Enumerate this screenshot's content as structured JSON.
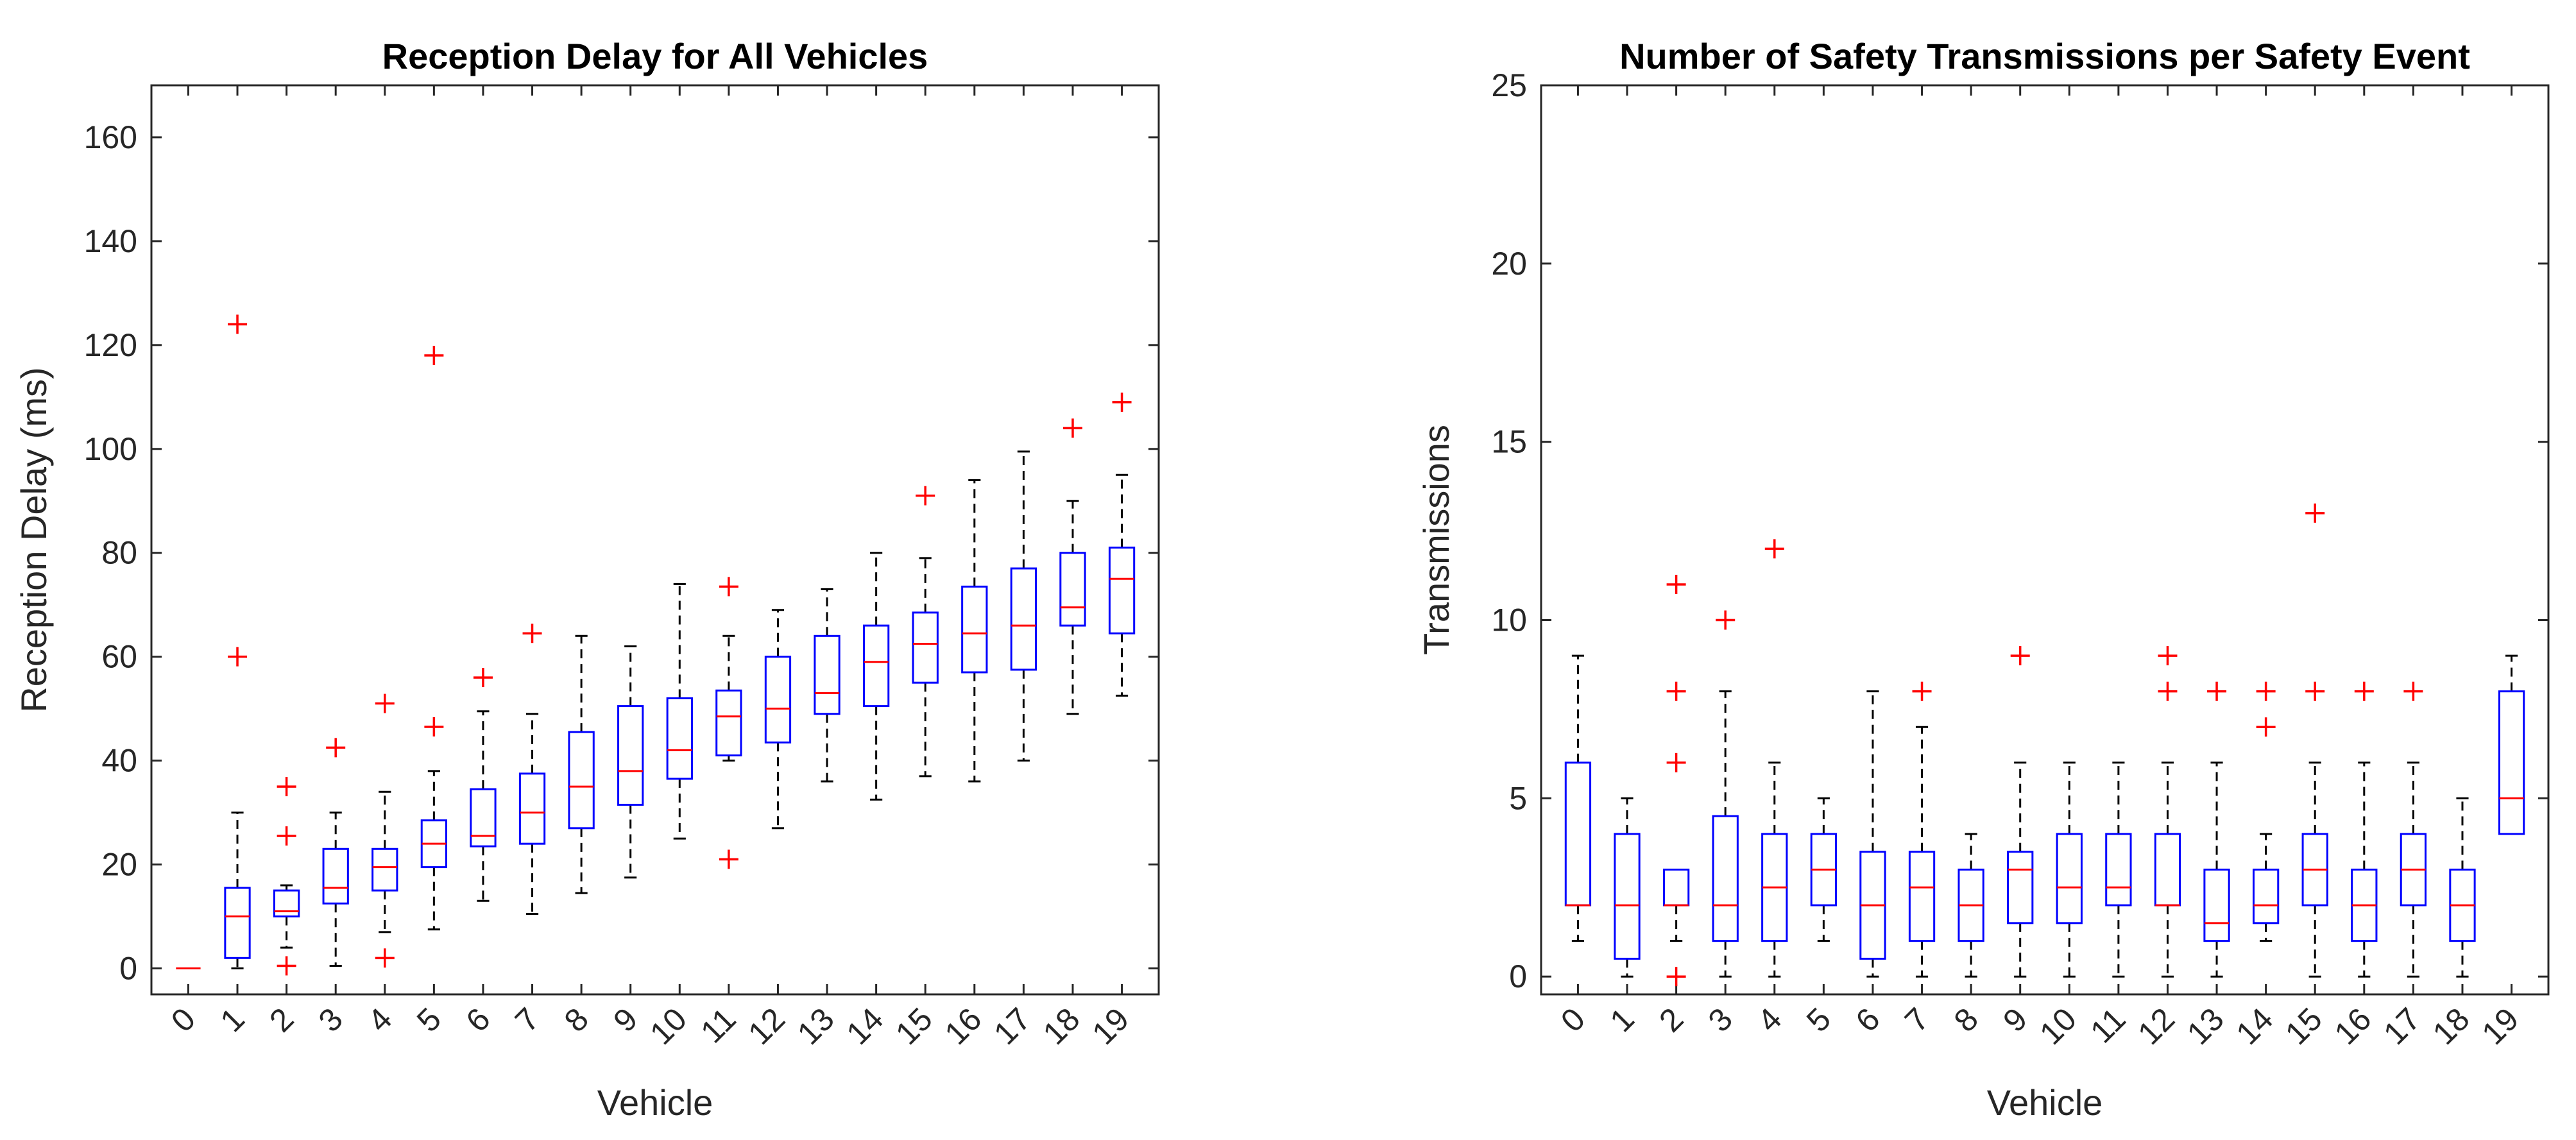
{
  "chart_data": [
    {
      "type": "box",
      "title": "Reception Delay for All Vehicles",
      "xlabel": "Vehicle",
      "ylabel": "Reception Delay (ms)",
      "ylim": [
        -5,
        170
      ],
      "yticks": [
        0,
        20,
        40,
        60,
        80,
        100,
        120,
        140,
        160
      ],
      "categories": [
        "0",
        "1",
        "2",
        "3",
        "4",
        "5",
        "6",
        "7",
        "8",
        "9",
        "10",
        "11",
        "12",
        "13",
        "14",
        "15",
        "16",
        "17",
        "18",
        "19"
      ],
      "colors": {
        "box": "#0000ff",
        "median": "#ff0000",
        "outlier": "#ff0000",
        "whisker": "#000000"
      },
      "boxes": [
        {
          "low": 0,
          "q1": 0,
          "median": 0,
          "q3": 0,
          "high": 0,
          "outliers": []
        },
        {
          "low": 0,
          "q1": 2,
          "median": 10,
          "q3": 15.5,
          "high": 30,
          "outliers": [
            60,
            124
          ]
        },
        {
          "low": 4,
          "q1": 10,
          "median": 11,
          "q3": 15,
          "high": 16,
          "outliers": [
            0.5,
            25.5,
            35
          ]
        },
        {
          "low": 0.5,
          "q1": 12.5,
          "median": 15.5,
          "q3": 23,
          "high": 30,
          "outliers": [
            42.5
          ]
        },
        {
          "low": 7,
          "q1": 15,
          "median": 19.5,
          "q3": 23,
          "high": 34,
          "outliers": [
            2,
            51
          ]
        },
        {
          "low": 7.5,
          "q1": 19.5,
          "median": 24,
          "q3": 28.5,
          "high": 38,
          "outliers": [
            46.5,
            118
          ]
        },
        {
          "low": 13,
          "q1": 23.5,
          "median": 25.5,
          "q3": 34.5,
          "high": 49.5,
          "outliers": [
            56
          ]
        },
        {
          "low": 10.5,
          "q1": 24,
          "median": 30,
          "q3": 37.5,
          "high": 49,
          "outliers": [
            64.5
          ]
        },
        {
          "low": 14.5,
          "q1": 27,
          "median": 35,
          "q3": 45.5,
          "high": 64,
          "outliers": []
        },
        {
          "low": 17.5,
          "q1": 31.5,
          "median": 38,
          "q3": 50.5,
          "high": 62,
          "outliers": []
        },
        {
          "low": 25,
          "q1": 36.5,
          "median": 42,
          "q3": 52,
          "high": 74,
          "outliers": []
        },
        {
          "low": 40,
          "q1": 41,
          "median": 48.5,
          "q3": 53.5,
          "high": 64,
          "outliers": [
            21,
            73.5
          ]
        },
        {
          "low": 27,
          "q1": 43.5,
          "median": 50,
          "q3": 60,
          "high": 69,
          "outliers": []
        },
        {
          "low": 36,
          "q1": 49,
          "median": 53,
          "q3": 64,
          "high": 73,
          "outliers": []
        },
        {
          "low": 32.5,
          "q1": 50.5,
          "median": 59,
          "q3": 66,
          "high": 80,
          "outliers": []
        },
        {
          "low": 37,
          "q1": 55,
          "median": 62.5,
          "q3": 68.5,
          "high": 79,
          "outliers": [
            91
          ]
        },
        {
          "low": 36,
          "q1": 57,
          "median": 64.5,
          "q3": 73.5,
          "high": 94,
          "outliers": []
        },
        {
          "low": 40,
          "q1": 57.5,
          "median": 66,
          "q3": 77,
          "high": 99.5,
          "outliers": []
        },
        {
          "low": 49,
          "q1": 66,
          "median": 69.5,
          "q3": 80,
          "high": 90,
          "outliers": [
            104
          ]
        },
        {
          "low": 52.5,
          "q1": 64.5,
          "median": 75,
          "q3": 81,
          "high": 95,
          "outliers": [
            109
          ]
        }
      ]
    },
    {
      "type": "box",
      "title": "Number of Safety Transmissions per Safety Event",
      "xlabel": "Vehicle",
      "ylabel": "Transmissions",
      "ylim": [
        -0.5,
        25
      ],
      "yticks": [
        0,
        5,
        10,
        15,
        20,
        25
      ],
      "categories": [
        "0",
        "1",
        "2",
        "3",
        "4",
        "5",
        "6",
        "7",
        "8",
        "9",
        "10",
        "11",
        "12",
        "13",
        "14",
        "15",
        "16",
        "17",
        "18",
        "19"
      ],
      "colors": {
        "box": "#0000ff",
        "median": "#ff0000",
        "outlier": "#ff0000",
        "whisker": "#000000"
      },
      "boxes": [
        {
          "low": 1,
          "q1": 2,
          "median": 2,
          "q3": 6,
          "high": 9,
          "outliers": []
        },
        {
          "low": 0,
          "q1": 0.5,
          "median": 2,
          "q3": 4,
          "high": 5,
          "outliers": []
        },
        {
          "low": 1,
          "q1": 2,
          "median": 2,
          "q3": 3,
          "high": 3,
          "outliers": [
            0,
            6,
            8,
            11
          ]
        },
        {
          "low": 0,
          "q1": 1,
          "median": 2,
          "q3": 4.5,
          "high": 8,
          "outliers": [
            10
          ]
        },
        {
          "low": 0,
          "q1": 1,
          "median": 2.5,
          "q3": 4,
          "high": 6,
          "outliers": [
            12
          ]
        },
        {
          "low": 1,
          "q1": 2,
          "median": 3,
          "q3": 4,
          "high": 5,
          "outliers": []
        },
        {
          "low": 0,
          "q1": 0.5,
          "median": 2,
          "q3": 3.5,
          "high": 8,
          "outliers": []
        },
        {
          "low": 0,
          "q1": 1,
          "median": 2.5,
          "q3": 3.5,
          "high": 7,
          "outliers": [
            8
          ]
        },
        {
          "low": 0,
          "q1": 1,
          "median": 2,
          "q3": 3,
          "high": 4,
          "outliers": []
        },
        {
          "low": 0,
          "q1": 1.5,
          "median": 3,
          "q3": 3.5,
          "high": 6,
          "outliers": [
            9
          ]
        },
        {
          "low": 0,
          "q1": 1.5,
          "median": 2.5,
          "q3": 4,
          "high": 6,
          "outliers": []
        },
        {
          "low": 0,
          "q1": 2,
          "median": 2.5,
          "q3": 4,
          "high": 6,
          "outliers": []
        },
        {
          "low": 0,
          "q1": 2,
          "median": 2,
          "q3": 4,
          "high": 6,
          "outliers": [
            8,
            9
          ]
        },
        {
          "low": 0,
          "q1": 1,
          "median": 1.5,
          "q3": 3,
          "high": 6,
          "outliers": [
            8
          ]
        },
        {
          "low": 1,
          "q1": 1.5,
          "median": 2,
          "q3": 3,
          "high": 4,
          "outliers": [
            7,
            8
          ]
        },
        {
          "low": 0,
          "q1": 2,
          "median": 3,
          "q3": 4,
          "high": 6,
          "outliers": [
            8,
            13
          ]
        },
        {
          "low": 0,
          "q1": 1,
          "median": 2,
          "q3": 3,
          "high": 6,
          "outliers": [
            8
          ]
        },
        {
          "low": 0,
          "q1": 2,
          "median": 3,
          "q3": 4,
          "high": 6,
          "outliers": [
            8
          ]
        },
        {
          "low": 0,
          "q1": 1,
          "median": 2,
          "q3": 3,
          "high": 5,
          "outliers": []
        },
        {
          "low": 4,
          "q1": 4,
          "median": 5,
          "q3": 8,
          "high": 9,
          "outliers": []
        }
      ]
    }
  ]
}
